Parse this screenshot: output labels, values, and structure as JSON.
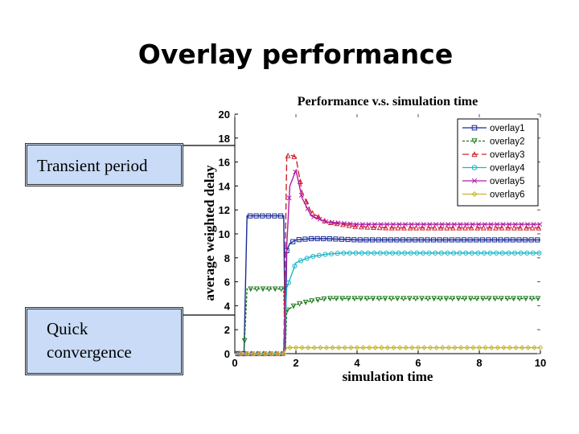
{
  "slide": {
    "title": "Overlay performance",
    "callouts": {
      "transient": "Transient period",
      "quick_line1": "Quick",
      "quick_line2": "convergence"
    }
  },
  "chart_data": {
    "type": "line",
    "title": "Performance v.s. simulation time",
    "xlabel": "simulation time",
    "ylabel": "average weighted delay",
    "xlim": [
      0,
      10
    ],
    "ylim": [
      0,
      20
    ],
    "xticks": [
      0,
      2,
      4,
      6,
      8,
      10
    ],
    "yticks": [
      0,
      2,
      4,
      6,
      8,
      10,
      12,
      14,
      16,
      18,
      20
    ],
    "grid": false,
    "legend_position": "top-right",
    "series": [
      {
        "name": "overlay1",
        "color": "#1a2a9a",
        "marker": "square",
        "dash": "",
        "x": [
          0,
          0.3,
          0.4,
          0.5,
          1.6,
          1.65,
          1.7,
          1.8,
          2.0,
          2.5,
          3,
          4,
          5,
          6,
          7,
          8,
          9,
          10
        ],
        "y": [
          0,
          0,
          11.5,
          11.5,
          11.5,
          0.3,
          8.6,
          9.2,
          9.5,
          9.6,
          9.6,
          9.5,
          9.5,
          9.5,
          9.5,
          9.5,
          9.5,
          9.5
        ]
      },
      {
        "name": "overlay2",
        "color": "#1c7a1c",
        "marker": "triangle-down",
        "dash": "3,2",
        "x": [
          0,
          0.3,
          0.4,
          0.5,
          1.6,
          1.65,
          1.7,
          2.0,
          2.5,
          3,
          4,
          5,
          6,
          7,
          8,
          9,
          10
        ],
        "y": [
          0,
          0,
          5.4,
          5.4,
          5.4,
          0.2,
          3.6,
          4.1,
          4.4,
          4.6,
          4.6,
          4.6,
          4.6,
          4.6,
          4.6,
          4.6,
          4.6
        ]
      },
      {
        "name": "overlay3",
        "color": "#d0202a",
        "marker": "triangle-up",
        "dash": "8,4",
        "x": [
          0,
          1.6,
          1.7,
          1.8,
          2.0,
          2.2,
          2.5,
          3,
          3.5,
          4,
          5,
          6,
          7,
          8,
          9,
          10
        ],
        "y": [
          0,
          0,
          16.5,
          16.6,
          16.4,
          13.5,
          11.8,
          11.0,
          10.8,
          10.6,
          10.5,
          10.5,
          10.5,
          10.5,
          10.5,
          10.5
        ]
      },
      {
        "name": "overlay4",
        "color": "#19b8c8",
        "marker": "circle",
        "dash": "",
        "x": [
          0,
          1.6,
          1.7,
          2.0,
          2.5,
          3,
          3.5,
          4,
          5,
          6,
          7,
          8,
          9,
          10
        ],
        "y": [
          0,
          0,
          5.5,
          7.6,
          8.1,
          8.3,
          8.4,
          8.4,
          8.4,
          8.4,
          8.4,
          8.4,
          8.4,
          8.4
        ]
      },
      {
        "name": "overlay5",
        "color": "#b01aa8",
        "marker": "x",
        "dash": "",
        "x": [
          0,
          1.6,
          1.7,
          1.8,
          2.0,
          2.2,
          2.5,
          3,
          4,
          5,
          6,
          7,
          8,
          9,
          10
        ],
        "y": [
          0,
          0,
          9.0,
          14.0,
          15.3,
          13.0,
          11.5,
          11.0,
          10.8,
          10.8,
          10.8,
          10.8,
          10.8,
          10.8,
          10.8
        ]
      },
      {
        "name": "overlay6",
        "color": "#c4b62a",
        "marker": "diamond",
        "dash": "",
        "x": [
          0,
          1.6,
          1.7,
          2.0,
          3,
          4,
          5,
          6,
          7,
          8,
          9,
          10
        ],
        "y": [
          0,
          0,
          0.5,
          0.5,
          0.5,
          0.5,
          0.5,
          0.5,
          0.5,
          0.5,
          0.5,
          0.5
        ]
      }
    ]
  }
}
